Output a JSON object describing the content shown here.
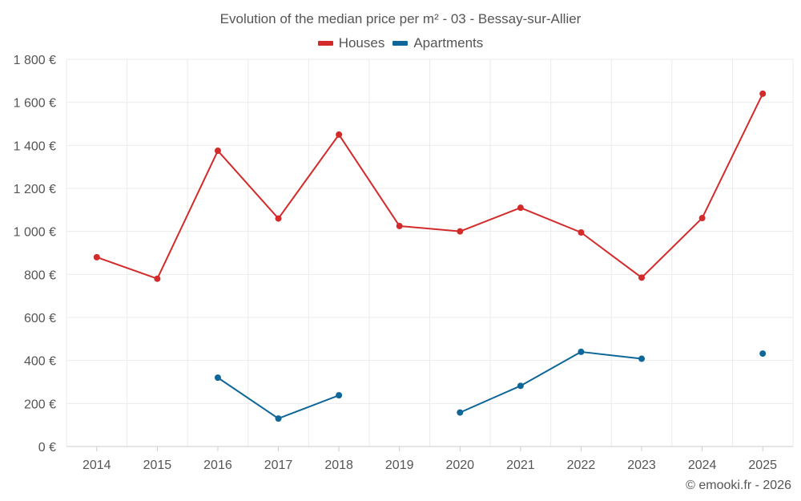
{
  "chart_data": {
    "type": "line",
    "title": "Evolution of the median price per m² - 03 - Bessay-sur-Allier",
    "xlabel": "",
    "ylabel": "",
    "categories": [
      "2014",
      "2015",
      "2016",
      "2017",
      "2018",
      "2019",
      "2020",
      "2021",
      "2022",
      "2023",
      "2024",
      "2025"
    ],
    "ylim": [
      0,
      1800
    ],
    "yticks": [
      0,
      200,
      400,
      600,
      800,
      1000,
      1200,
      1400,
      1600,
      1800
    ],
    "ytick_labels": [
      "0 €",
      "200 €",
      "400 €",
      "600 €",
      "800 €",
      "1 000 €",
      "1 200 €",
      "1 400 €",
      "1 600 €",
      "1 800 €"
    ],
    "grid": true,
    "legend_position": "top-center",
    "series": [
      {
        "name": "Houses",
        "color": "#d32a2a",
        "values": [
          880,
          780,
          1375,
          1060,
          1450,
          1025,
          1000,
          1110,
          995,
          785,
          1062,
          1640
        ]
      },
      {
        "name": "Apartments",
        "color": "#0e6699",
        "values": [
          null,
          null,
          320,
          130,
          238,
          null,
          158,
          282,
          440,
          408,
          null,
          432
        ]
      }
    ]
  },
  "credit": "© emooki.fr - 2026"
}
